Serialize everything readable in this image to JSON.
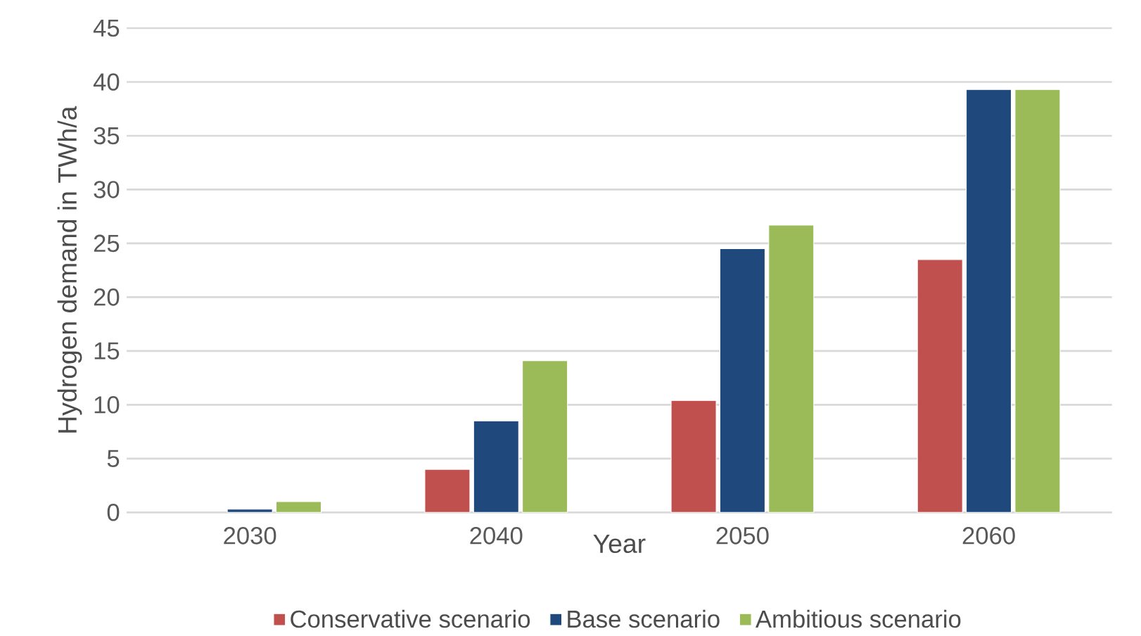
{
  "chart_data": {
    "type": "bar",
    "xlabel": "Year",
    "ylabel": "Hydrogen demand in TWh/a",
    "categories": [
      "2030",
      "2040",
      "2050",
      "2060"
    ],
    "series": [
      {
        "name": "Conservative scenario",
        "color": "#c0504d",
        "values": [
          null,
          4.0,
          10.4,
          23.5
        ]
      },
      {
        "name": "Base scenario",
        "color": "#1f497d",
        "values": [
          0.3,
          8.5,
          24.5,
          39.3
        ]
      },
      {
        "name": "Ambitious scenario",
        "color": "#9bbb59",
        "values": [
          1.0,
          14.1,
          26.7,
          39.3
        ]
      }
    ],
    "ylim": [
      0,
      45
    ],
    "yticks": [
      0,
      5,
      10,
      15,
      20,
      25,
      30,
      35,
      40,
      45
    ],
    "grid": "y",
    "legend": "bottom"
  }
}
